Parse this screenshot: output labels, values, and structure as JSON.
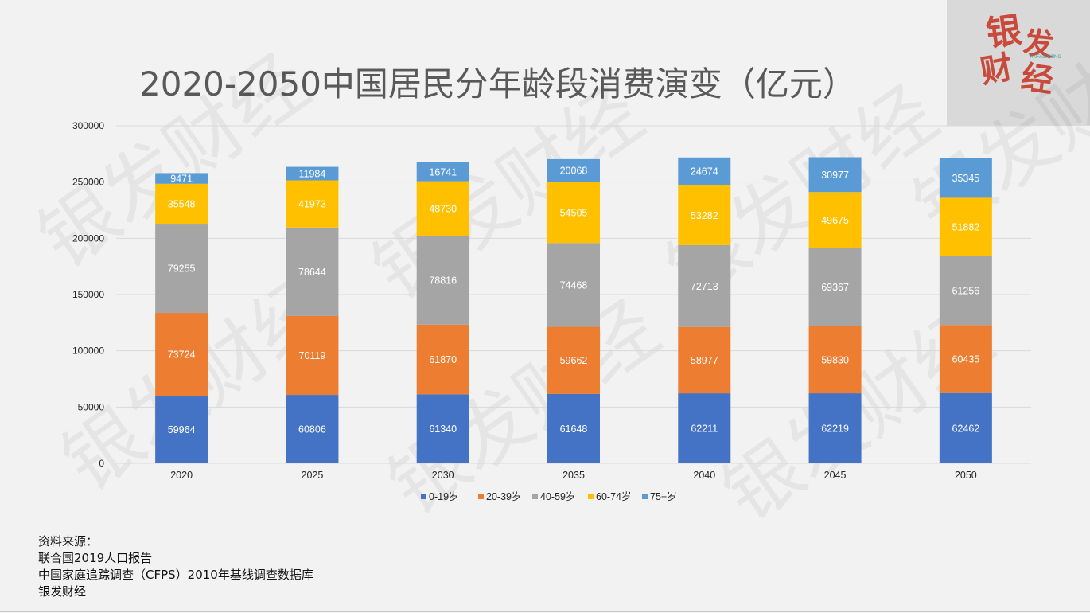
{
  "title": "2020-2050中国居民分年龄段消费演变（亿元）",
  "logo": {
    "text_main": "银发财经",
    "text_pinyin": "YINFACAIJING",
    "color": "#c94a3a"
  },
  "watermark_text": "银发财经",
  "source": {
    "label": "资料来源：",
    "lines": [
      "联合国2019人口报告",
      "中国家庭追踪调查（CFPS）2010年基线调查数据库",
      "银发财经"
    ]
  },
  "chart_data": {
    "type": "bar",
    "stacked": true,
    "title": "2020-2050中国居民分年龄段消费演变（亿元）",
    "xlabel": "",
    "ylabel": "",
    "categories": [
      "2020",
      "2025",
      "2030",
      "2035",
      "2040",
      "2045",
      "2050"
    ],
    "ylim": [
      0,
      300000
    ],
    "yticks": [
      0,
      50000,
      100000,
      150000,
      200000,
      250000,
      300000
    ],
    "ytick_labels": [
      "0",
      "50000",
      "100000",
      "150000",
      "200000",
      "250000",
      "300000"
    ],
    "grid": true,
    "legend_position": "bottom",
    "series": [
      {
        "name": "0-19岁",
        "color": "#4472c4",
        "values": [
          59964,
          60806,
          61340,
          61648,
          62211,
          62219,
          62462
        ]
      },
      {
        "name": "20-39岁",
        "color": "#ed7d31",
        "values": [
          73724,
          70119,
          61870,
          59662,
          58977,
          59830,
          60435
        ]
      },
      {
        "name": "40-59岁",
        "color": "#a5a5a5",
        "values": [
          79255,
          78644,
          78816,
          74468,
          72713,
          69367,
          61256
        ]
      },
      {
        "name": "60-74岁",
        "color": "#ffc000",
        "values": [
          35548,
          41973,
          48730,
          54505,
          53282,
          49675,
          51882
        ]
      },
      {
        "name": "75+岁",
        "color": "#5b9bd5",
        "values": [
          9471,
          11984,
          16741,
          20068,
          24674,
          30977,
          35345
        ]
      }
    ]
  }
}
